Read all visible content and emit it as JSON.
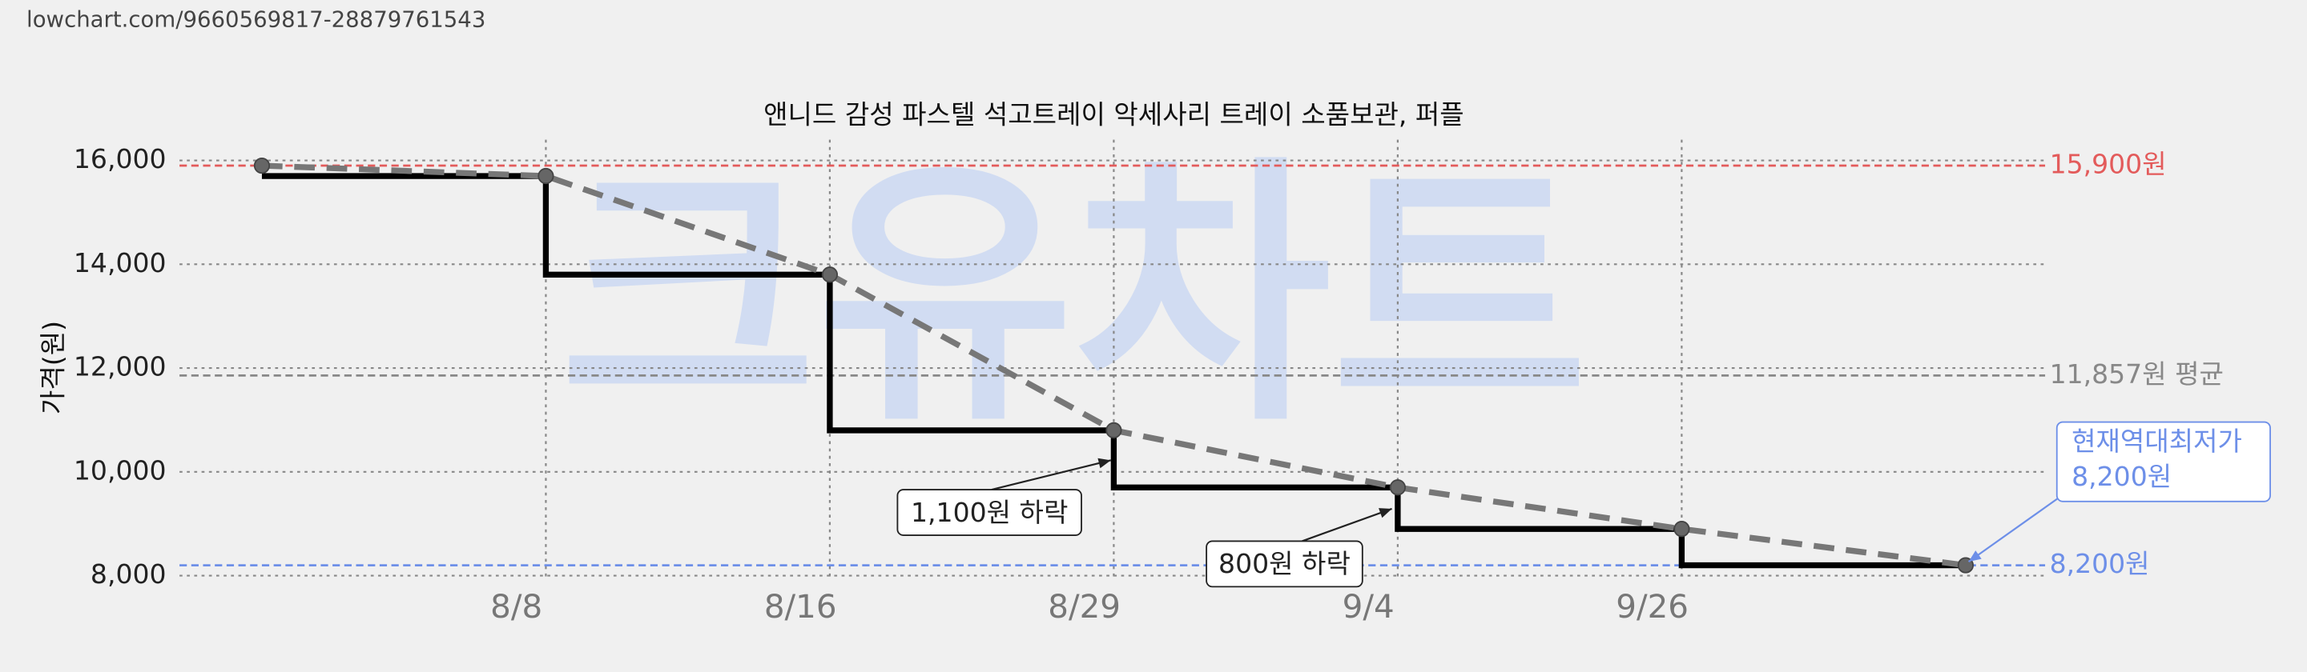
{
  "url": "lowchart.com/9660569817-28879761543",
  "chart_data": {
    "type": "line",
    "title": "앤니드 감성 파스텔 석고트레이 악세사리 트레이 소품보관, 퍼플",
    "y_label": "가격(원)",
    "watermark": "크유차트",
    "categories": [
      null,
      "8/8",
      "8/16",
      "8/29",
      "9/4",
      "9/26",
      null
    ],
    "series": [
      {
        "color": "#000000",
        "step": true,
        "values": [
          15700,
          13800,
          10800,
          9700,
          8900,
          8200,
          8200
        ]
      },
      {
        "color": "#777777",
        "dashed": true,
        "markers": true,
        "values": [
          15900,
          15700,
          13800,
          10800,
          9700,
          8900,
          8200
        ]
      }
    ],
    "ylim": [
      7900,
      16400
    ],
    "yticks": [
      {
        "value": 8000,
        "label": "8,000"
      },
      {
        "value": 10000,
        "label": "10,000"
      },
      {
        "value": 12000,
        "label": "12,000"
      },
      {
        "value": 14000,
        "label": "14,000"
      },
      {
        "value": 16000,
        "label": "16,000"
      }
    ],
    "grid": true,
    "reference_lines": [
      {
        "value": 15900,
        "label": "15,900원",
        "color": "#e35b5b"
      },
      {
        "value": 11857,
        "label": "11,857원 평균",
        "color": "#888888"
      },
      {
        "value": 8200,
        "label": "8,200원",
        "color": "#6d8fe8"
      }
    ],
    "annotations": [
      {
        "text": "1,100원 하락"
      },
      {
        "text": "800원 하락"
      },
      {
        "lines": [
          "현재역대최저가",
          "8,200원"
        ],
        "color": "#6d8fe8"
      }
    ]
  }
}
